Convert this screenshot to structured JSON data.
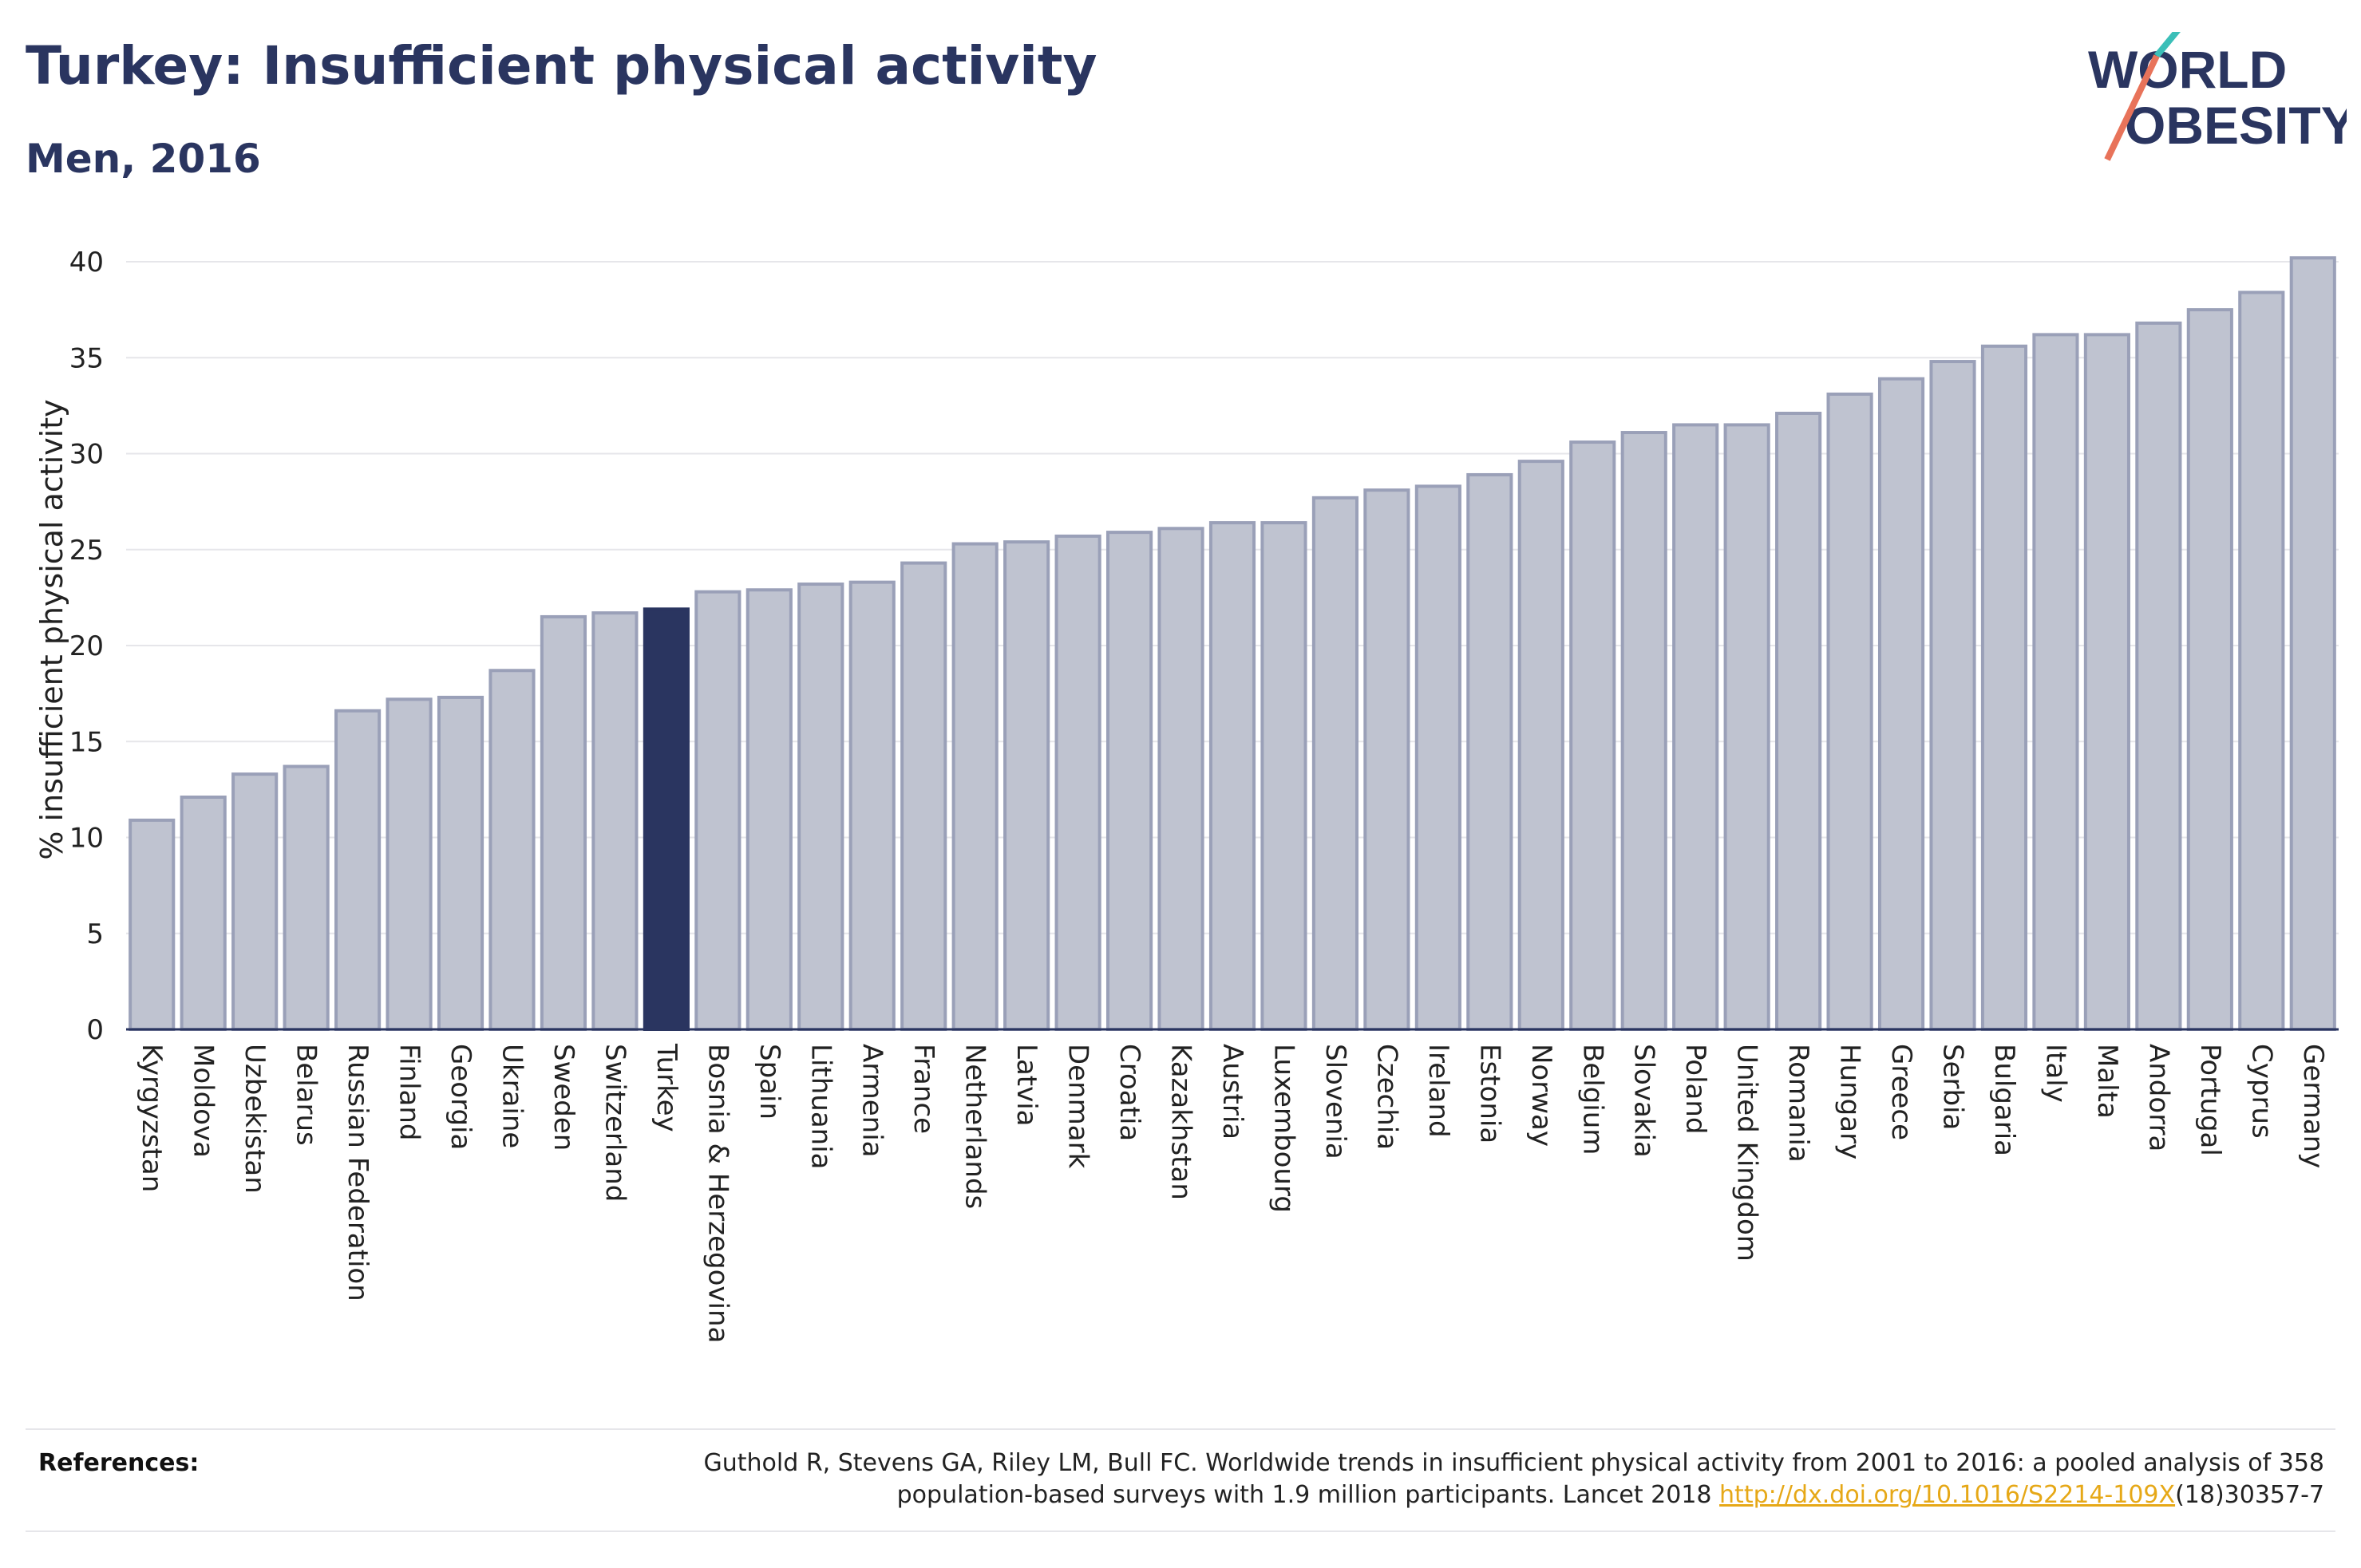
{
  "header": {
    "title": "Turkey: Insufficient physical activity",
    "subtitle": "Men, 2016"
  },
  "logo": {
    "line1": "WORLD",
    "line2": "OBESITY"
  },
  "colors": {
    "bar": "#bfc3d0",
    "bar_stroke": "#9aa0b8",
    "highlight": "#2a3560",
    "axis": "#2a3560",
    "grid": "#e6e6ea",
    "text": "#222222",
    "link": "#e6a817"
  },
  "chart_data": {
    "type": "bar",
    "title": "Turkey: Insufficient physical activity",
    "subtitle": "Men, 2016",
    "xlabel": "",
    "ylabel": "% insufficient physical activity",
    "ylim": [
      0,
      40
    ],
    "yticks": [
      0,
      5,
      10,
      15,
      20,
      25,
      30,
      35,
      40
    ],
    "grid": true,
    "highlight": "Turkey",
    "categories": [
      "Kyrgyzstan",
      "Moldova",
      "Uzbekistan",
      "Belarus",
      "Russian Federation",
      "Finland",
      "Georgia",
      "Ukraine",
      "Sweden",
      "Switzerland",
      "Turkey",
      "Bosnia & Herzegovina",
      "Spain",
      "Lithuania",
      "Armenia",
      "France",
      "Netherlands",
      "Latvia",
      "Denmark",
      "Croatia",
      "Kazakhstan",
      "Austria",
      "Luxembourg",
      "Slovenia",
      "Czechia",
      "Ireland",
      "Estonia",
      "Norway",
      "Belgium",
      "Slovakia",
      "Poland",
      "United Kingdom",
      "Romania",
      "Hungary",
      "Greece",
      "Serbia",
      "Bulgaria",
      "Italy",
      "Malta",
      "Andorra",
      "Portugal",
      "Cyprus",
      "Germany"
    ],
    "values": [
      10.9,
      12.1,
      13.3,
      13.7,
      16.6,
      17.2,
      17.3,
      18.7,
      21.5,
      21.7,
      21.9,
      22.8,
      22.9,
      23.2,
      23.3,
      24.3,
      25.3,
      25.4,
      25.7,
      25.9,
      26.1,
      26.4,
      26.4,
      27.7,
      28.1,
      28.3,
      28.9,
      29.6,
      30.6,
      31.1,
      31.5,
      31.5,
      32.1,
      33.1,
      33.9,
      34.8,
      35.6,
      36.2,
      36.2,
      36.8,
      37.5,
      38.4,
      40.2
    ]
  },
  "references": {
    "label": "References:",
    "text_line1": "Guthold R, Stevens GA, Riley LM, Bull FC. Worldwide trends in insufficient physical activity from 2001 to 2016: a pooled analysis of 358",
    "text_line2_prefix": "population-based surveys with 1.9 million participants. Lancet 2018 ",
    "link": "http://dx.doi.org/10.1016/S2214-109X",
    "text_line2_suffix": "(18)30357-7"
  }
}
